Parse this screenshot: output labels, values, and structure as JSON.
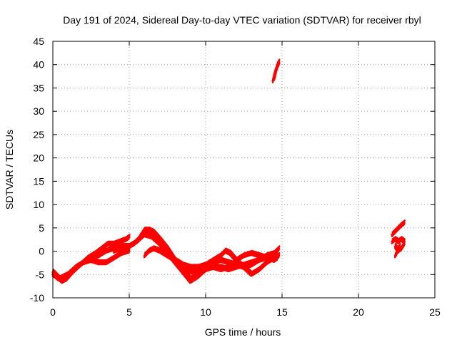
{
  "chart_data": {
    "type": "line",
    "title": "Day 191 of 2024, Sidereal Day-to-day VTEC variation (SDTVAR) for receiver rbyl",
    "xlabel": "GPS time / hours",
    "ylabel": "SDTVAR / TECUs",
    "xlim": [
      0,
      25
    ],
    "ylim": [
      -10,
      45
    ],
    "xticks": [
      0,
      5,
      10,
      15,
      20,
      25
    ],
    "yticks": [
      -10,
      -5,
      0,
      5,
      10,
      15,
      20,
      25,
      30,
      35,
      40,
      45
    ],
    "grid": true,
    "legend": "none",
    "color": "#ff0000",
    "series": [
      {
        "x": [
          0,
          0.3,
          0.6,
          0.9,
          1.3,
          1.8,
          2.3,
          2.8,
          3.2,
          3.6,
          4.0,
          4.4,
          4.8,
          5.0
        ],
        "y": [
          -4.5,
          -5.5,
          -6.5,
          -6.0,
          -4.5,
          -3.0,
          -1.5,
          -0.5,
          0.5,
          1.5,
          1.5,
          2.0,
          2.5,
          3.0
        ]
      },
      {
        "x": [
          0,
          0.4,
          0.7,
          1.0,
          1.5,
          2.0,
          2.5,
          3.0,
          3.5,
          4.0,
          4.5,
          5.0
        ],
        "y": [
          -5.0,
          -6.0,
          -5.5,
          -5.0,
          -3.5,
          -2.5,
          -2.0,
          -2.5,
          -2.5,
          -1.5,
          -0.5,
          0.0
        ]
      },
      {
        "x": [
          2.5,
          3.0,
          3.5,
          4.0,
          4.5,
          5.0,
          5.3,
          5.6,
          6.0,
          6.3,
          6.6,
          7.0,
          7.5,
          8.0,
          8.5,
          9.0,
          9.5,
          10.0,
          10.5,
          11.0,
          11.5,
          12.0,
          12.5,
          13.0,
          13.5,
          14.0,
          14.5,
          14.7
        ],
        "y": [
          -1.5,
          -1.0,
          0.0,
          0.5,
          1.0,
          1.0,
          1.5,
          2.5,
          4.5,
          4.5,
          4.0,
          2.5,
          0.5,
          -2.0,
          -4.5,
          -6.5,
          -5.5,
          -4.0,
          -3.5,
          -3.5,
          -4.0,
          -3.5,
          -3.0,
          -2.5,
          -2.0,
          -1.5,
          -1.0,
          0.0
        ]
      },
      {
        "x": [
          4.0,
          4.5,
          5.0,
          5.5,
          6.0,
          6.5,
          7.0,
          7.5,
          8.0,
          8.5,
          9.0,
          9.5,
          10.0,
          10.5,
          11.0,
          11.5,
          12.0,
          12.5,
          13.0,
          13.5,
          14.0,
          14.5,
          14.8
        ],
        "y": [
          0.0,
          0.5,
          1.0,
          2.0,
          3.5,
          3.0,
          1.5,
          -0.5,
          -2.5,
          -4.5,
          -6.0,
          -5.0,
          -3.5,
          -2.5,
          -2.0,
          -2.5,
          -3.0,
          -3.5,
          -3.0,
          -2.0,
          -1.0,
          -0.5,
          0.5
        ]
      },
      {
        "x": [
          6.0,
          6.3,
          6.6,
          7.0,
          7.5,
          8.0,
          8.5,
          9.0,
          9.5,
          10.0,
          10.5,
          11.0,
          11.3,
          11.6,
          12.0,
          12.5,
          13.0,
          13.5,
          14.0,
          14.5,
          14.8
        ],
        "y": [
          -1.0,
          0.0,
          0.5,
          0.0,
          -1.0,
          -2.0,
          -3.0,
          -3.5,
          -3.5,
          -3.0,
          -2.0,
          -1.0,
          0.0,
          -0.5,
          -2.0,
          -3.5,
          -5.0,
          -4.0,
          -2.5,
          -1.5,
          -1.0
        ]
      },
      {
        "x": [
          8.5,
          9.0,
          9.5,
          10.0,
          10.5,
          11.0,
          11.5,
          12.0,
          12.5,
          13.0,
          13.5,
          14.0,
          14.5,
          14.7
        ],
        "y": [
          -4.0,
          -4.5,
          -4.5,
          -4.0,
          -3.5,
          -4.0,
          -3.5,
          -2.0,
          -1.0,
          -0.5,
          -1.0,
          -1.5,
          -2.0,
          -1.5
        ]
      },
      {
        "x": [
          14.4,
          14.5,
          14.6,
          14.7,
          14.8
        ],
        "y": [
          36.5,
          38.0,
          39.0,
          40.0,
          40.5
        ]
      },
      {
        "x": [
          14.5,
          14.6,
          14.7,
          14.8
        ],
        "y": [
          37.0,
          38.5,
          39.5,
          40.2
        ]
      },
      {
        "x": [
          22.2,
          22.5,
          22.8,
          23.0
        ],
        "y": [
          3.5,
          4.5,
          5.5,
          6.0
        ]
      },
      {
        "x": [
          22.2,
          22.4,
          22.6,
          22.8,
          23.0
        ],
        "y": [
          2.0,
          2.5,
          2.0,
          2.5,
          2.0
        ]
      },
      {
        "x": [
          22.4,
          22.6,
          22.8,
          23.0
        ],
        "y": [
          1.0,
          0.0,
          0.5,
          1.5
        ]
      },
      {
        "x": [
          22.4,
          22.5,
          22.6,
          22.7
        ],
        "y": [
          -1.0,
          -0.5,
          0.5,
          1.0
        ]
      }
    ]
  }
}
